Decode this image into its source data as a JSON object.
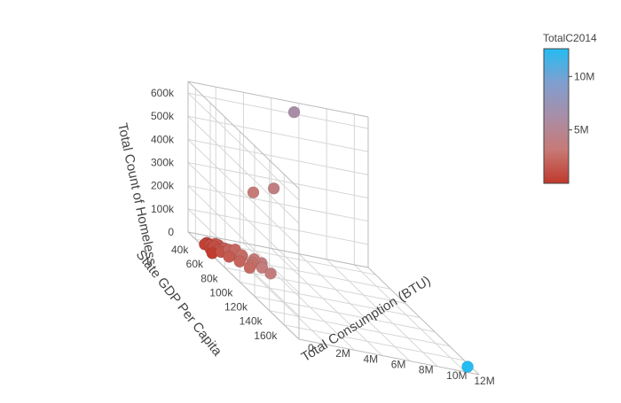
{
  "chart_data": {
    "type": "scatter3d",
    "axes": {
      "x": {
        "title": "Total Consumption (BTU)",
        "range": [
          0,
          13000000
        ],
        "ticks": [
          {
            "value": 0,
            "label": "0"
          },
          {
            "value": 2000000,
            "label": "2M"
          },
          {
            "value": 4000000,
            "label": "4M"
          },
          {
            "value": 6000000,
            "label": "6M"
          },
          {
            "value": 8000000,
            "label": "8M"
          },
          {
            "value": 10000000,
            "label": "10M"
          },
          {
            "value": 12000000,
            "label": "12M"
          }
        ]
      },
      "y": {
        "title": "State GDP Per Capita",
        "range": [
          30000,
          180000
        ],
        "ticks": [
          {
            "value": 40000,
            "label": "40k"
          },
          {
            "value": 60000,
            "label": "60k"
          },
          {
            "value": 80000,
            "label": "80k"
          },
          {
            "value": 100000,
            "label": "100k"
          },
          {
            "value": 120000,
            "label": "120k"
          },
          {
            "value": 140000,
            "label": "140k"
          },
          {
            "value": 160000,
            "label": "160k"
          }
        ]
      },
      "z": {
        "title": "Total Count of Homeless",
        "range": [
          0,
          650000
        ],
        "ticks": [
          {
            "value": 0,
            "label": "0"
          },
          {
            "value": 100000,
            "label": "100k"
          },
          {
            "value": 200000,
            "label": "200k"
          },
          {
            "value": 300000,
            "label": "300k"
          },
          {
            "value": 400000,
            "label": "400k"
          },
          {
            "value": 500000,
            "label": "500k"
          },
          {
            "value": 600000,
            "label": "600k"
          }
        ]
      }
    },
    "grid": true,
    "colorbar": {
      "title": "TotalC2014",
      "min": 0,
      "max": 12600000,
      "ticks": [
        {
          "value": 5000000,
          "label": "5M"
        },
        {
          "value": 10000000,
          "label": "10M"
        }
      ],
      "colorscale": [
        "#c0392b",
        "#c77a76",
        "#a88ea8",
        "#7f9fd0",
        "#24bcf2"
      ]
    },
    "points": [
      {
        "x": 7600000,
        "y": 31000,
        "z": 610000,
        "c": 6200000
      },
      {
        "x": 4800000,
        "y": 56000,
        "z": 325000,
        "c": 3800000
      },
      {
        "x": 3000000,
        "y": 62000,
        "z": 305000,
        "c": 3300000
      },
      {
        "x": 12600000,
        "y": 172000,
        "z": 5000,
        "c": 12600000
      },
      {
        "x": 150000,
        "y": 60000,
        "z": 3000,
        "c": 200000
      },
      {
        "x": 1800000,
        "y": 60000,
        "z": 38000,
        "c": 2300000
      },
      {
        "x": 2000000,
        "y": 65000,
        "z": 32000,
        "c": 2500000
      },
      {
        "x": 2200000,
        "y": 62000,
        "z": 20000,
        "c": 2600000
      },
      {
        "x": 1500000,
        "y": 57000,
        "z": 25000,
        "c": 2000000
      },
      {
        "x": 1300000,
        "y": 55000,
        "z": 22000,
        "c": 1800000
      },
      {
        "x": 2600000,
        "y": 68000,
        "z": 15000,
        "c": 2900000
      },
      {
        "x": 2900000,
        "y": 65000,
        "z": 25000,
        "c": 3100000
      },
      {
        "x": 3100000,
        "y": 72000,
        "z": 12000,
        "c": 3400000
      },
      {
        "x": 2400000,
        "y": 70000,
        "z": 8000,
        "c": 2700000
      },
      {
        "x": 2100000,
        "y": 74000,
        "z": 6000,
        "c": 2400000
      },
      {
        "x": 1700000,
        "y": 68000,
        "z": 10000,
        "c": 2100000
      },
      {
        "x": 1200000,
        "y": 63000,
        "z": 9000,
        "c": 1600000
      },
      {
        "x": 900000,
        "y": 58000,
        "z": 11000,
        "c": 1200000
      },
      {
        "x": 700000,
        "y": 52000,
        "z": 14000,
        "c": 1000000
      },
      {
        "x": 500000,
        "y": 50000,
        "z": 10000,
        "c": 800000
      },
      {
        "x": 1000000,
        "y": 48000,
        "z": 16000,
        "c": 1400000
      },
      {
        "x": 1400000,
        "y": 45000,
        "z": 6000,
        "c": 1700000
      },
      {
        "x": 800000,
        "y": 46000,
        "z": 5000,
        "c": 900000
      },
      {
        "x": 600000,
        "y": 44000,
        "z": 4000,
        "c": 700000
      },
      {
        "x": 300000,
        "y": 47000,
        "z": 3000,
        "c": 400000
      },
      {
        "x": 400000,
        "y": 53000,
        "z": 2000,
        "c": 500000
      },
      {
        "x": 1100000,
        "y": 52000,
        "z": 3000,
        "c": 1300000
      },
      {
        "x": 1900000,
        "y": 56000,
        "z": 4000,
        "c": 2200000
      },
      {
        "x": 3400000,
        "y": 78000,
        "z": 9000,
        "c": 3600000
      },
      {
        "x": 3600000,
        "y": 62000,
        "z": 7000,
        "c": 3800000
      }
    ]
  }
}
